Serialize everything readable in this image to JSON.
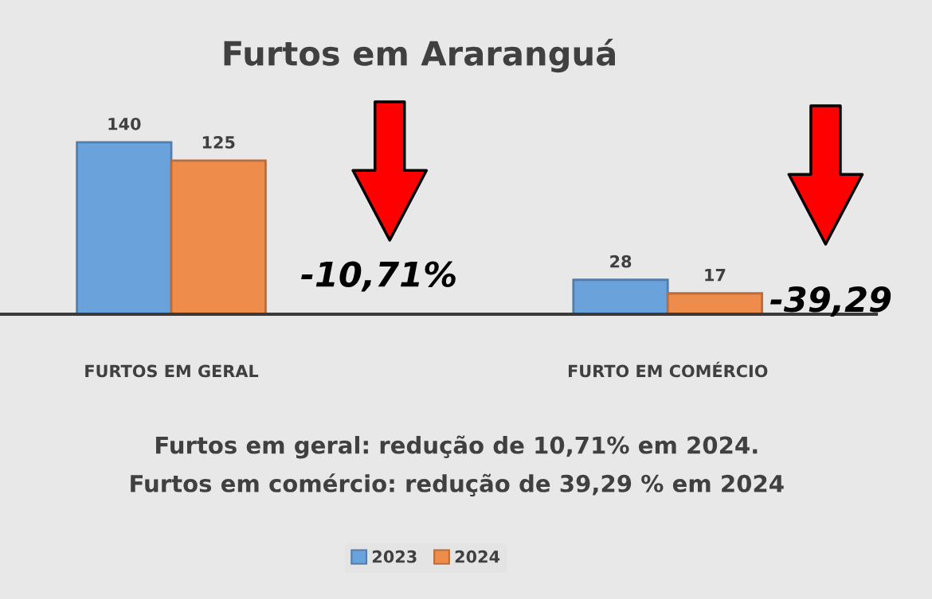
{
  "chart_data": {
    "type": "bar",
    "title": "Furtos em Araranguá",
    "categories": [
      "FURTOS EM GERAL",
      "FURTO EM COMÉRCIO"
    ],
    "series": [
      {
        "name": "2023",
        "color": "#6aa2dc",
        "values": [
          140,
          28
        ]
      },
      {
        "name": "2024",
        "color": "#ee8c4c",
        "values": [
          125,
          17
        ]
      }
    ],
    "data_labels": true,
    "annotations": [
      "-10,71%",
      "-39,29",
      "Furtos em geral: redução de 10,71% em 2024.",
      "Furtos em comércio: redução de 39,29 % em 2024"
    ],
    "legend": "bottom",
    "tick_labels": "x",
    "grid": false
  }
}
